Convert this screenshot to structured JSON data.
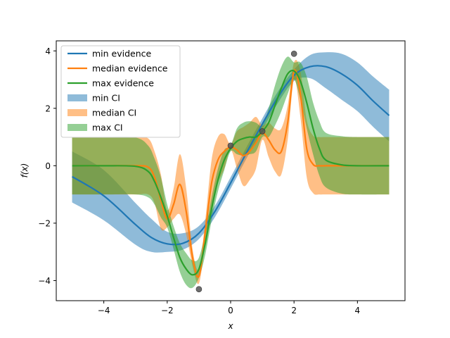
{
  "chart_data": {
    "type": "line",
    "xlabel": "x",
    "ylabel": "f(x)",
    "xlim": [
      -5.5,
      5.5
    ],
    "ylim": [
      -4.7,
      4.35
    ],
    "xticks": [
      -4,
      -2,
      0,
      2,
      4
    ],
    "yticks": [
      -4,
      -2,
      0,
      2,
      4
    ],
    "xtick_labels": [
      "−4",
      "−2",
      "0",
      "2",
      "4"
    ],
    "ytick_labels": [
      "−4",
      "−2",
      "0",
      "2",
      "4"
    ],
    "grid": false,
    "legend_position": "top-left",
    "observations": {
      "x": [
        -1,
        0,
        1,
        2
      ],
      "y": [
        -4.3,
        0.7,
        1.2,
        3.9
      ],
      "color": "#555555"
    },
    "series": [
      {
        "name": "min evidence",
        "ci_name": "min CI",
        "color": "#1f77b4",
        "ci_alpha": 0.5,
        "x": [
          -5,
          -4,
          -3,
          -2.5,
          -2,
          -1.5,
          -1,
          -0.5,
          0,
          0.5,
          1,
          1.5,
          2,
          2.5,
          3,
          3.5,
          4,
          4.5,
          5
        ],
        "mean": [
          -0.38,
          -1.05,
          -2.05,
          -2.5,
          -2.72,
          -2.7,
          -2.35,
          -1.6,
          -0.6,
          0.45,
          1.45,
          2.4,
          3.15,
          3.45,
          3.45,
          3.2,
          2.8,
          2.25,
          1.75
        ],
        "lower": [
          -1.28,
          -1.9,
          -2.75,
          -3.0,
          -3.0,
          -2.92,
          -2.55,
          -1.8,
          -0.8,
          0.25,
          1.25,
          2.2,
          2.95,
          3.05,
          2.7,
          2.3,
          1.9,
          1.35,
          0.85
        ],
        "upper": [
          0.5,
          -0.15,
          -1.3,
          -1.85,
          -2.3,
          -2.35,
          -2.1,
          -1.4,
          -0.4,
          0.65,
          1.65,
          2.6,
          3.35,
          3.85,
          3.95,
          3.9,
          3.6,
          3.1,
          2.65
        ]
      },
      {
        "name": "median evidence",
        "ci_name": "median CI",
        "color": "#ff7f0e",
        "ci_alpha": 0.5,
        "x": [
          -5,
          -4,
          -3,
          -2.6,
          -2.4,
          -2.2,
          -2,
          -1.8,
          -1.6,
          -1.4,
          -1.2,
          -1.0,
          -0.8,
          -0.6,
          -0.4,
          -0.2,
          0,
          0.2,
          0.4,
          0.6,
          0.8,
          1.0,
          1.2,
          1.4,
          1.6,
          1.8,
          2.0,
          2.2,
          2.4,
          2.6,
          2.8,
          3,
          4,
          5
        ],
        "mean": [
          0,
          0,
          0,
          -0.05,
          -0.4,
          -1.2,
          -1.85,
          -1.35,
          -0.65,
          -1.6,
          -3.2,
          -3.85,
          -2.3,
          -0.6,
          0.2,
          0.5,
          0.65,
          0.55,
          0.35,
          0.5,
          0.8,
          1.15,
          0.9,
          0.55,
          0.5,
          1.5,
          3.3,
          2.5,
          0.6,
          0.05,
          0,
          0,
          0,
          0
        ],
        "lower": [
          -1,
          -1,
          -1,
          -1,
          -1.3,
          -2.2,
          -2.15,
          -1.85,
          -1.7,
          -2.4,
          -3.5,
          -4.1,
          -2.7,
          -1.4,
          -0.6,
          -0.1,
          0.55,
          -0.1,
          -0.7,
          -0.5,
          -0.1,
          0.9,
          0.3,
          -0.2,
          -0.3,
          0.9,
          3.0,
          1.7,
          -0.4,
          -0.95,
          -1,
          -1,
          -1,
          -1
        ],
        "upper": [
          1,
          1,
          1,
          0.95,
          0.5,
          -0.3,
          -1.55,
          -0.8,
          0.4,
          -0.8,
          -2.9,
          -3.6,
          -1.9,
          0.2,
          1.0,
          1.1,
          0.75,
          1.2,
          1.35,
          1.5,
          1.7,
          1.4,
          1.5,
          1.3,
          1.3,
          2.1,
          3.6,
          3.3,
          1.6,
          1.05,
          1,
          1,
          1,
          1
        ]
      },
      {
        "name": "max evidence",
        "ci_name": "max CI",
        "color": "#2ca02c",
        "ci_alpha": 0.5,
        "x": [
          -5,
          -4,
          -3,
          -2.6,
          -2.4,
          -2.2,
          -2,
          -1.8,
          -1.6,
          -1.4,
          -1.2,
          -1.0,
          -0.8,
          -0.6,
          -0.4,
          -0.2,
          0,
          0.2,
          0.4,
          0.6,
          0.8,
          1.0,
          1.2,
          1.4,
          1.6,
          1.8,
          2.0,
          2.2,
          2.4,
          2.6,
          2.8,
          3,
          3.5,
          4,
          5
        ],
        "mean": [
          0,
          0,
          -0.02,
          -0.2,
          -0.55,
          -1.1,
          -1.75,
          -2.5,
          -3.2,
          -3.6,
          -3.8,
          -3.6,
          -2.7,
          -1.5,
          -0.5,
          0.2,
          0.6,
          0.85,
          0.95,
          1.0,
          1.0,
          1.2,
          1.5,
          2.1,
          2.7,
          3.2,
          3.3,
          2.95,
          2.2,
          1.3,
          0.6,
          0.2,
          0.03,
          0,
          0
        ],
        "lower": [
          -1,
          -1,
          -1,
          -1.1,
          -1.35,
          -1.8,
          -2.15,
          -2.9,
          -3.7,
          -4.15,
          -4.25,
          -3.9,
          -3.1,
          -1.9,
          -0.9,
          -0.15,
          0.5,
          0.4,
          0.35,
          0.4,
          0.5,
          1.0,
          1.0,
          1.4,
          1.9,
          2.5,
          3.0,
          2.3,
          1.3,
          0.4,
          -0.35,
          -0.75,
          -0.97,
          -1,
          -1
        ],
        "upper": [
          1,
          1,
          0.98,
          0.7,
          0.25,
          -0.4,
          -1.35,
          -2.1,
          -2.7,
          -3.05,
          -3.3,
          -3.2,
          -2.3,
          -1.1,
          -0.1,
          0.55,
          0.7,
          1.3,
          1.5,
          1.55,
          1.5,
          1.4,
          2.0,
          2.8,
          3.45,
          3.8,
          3.6,
          3.6,
          3.1,
          2.2,
          1.55,
          1.15,
          1.03,
          1,
          1
        ]
      }
    ]
  }
}
